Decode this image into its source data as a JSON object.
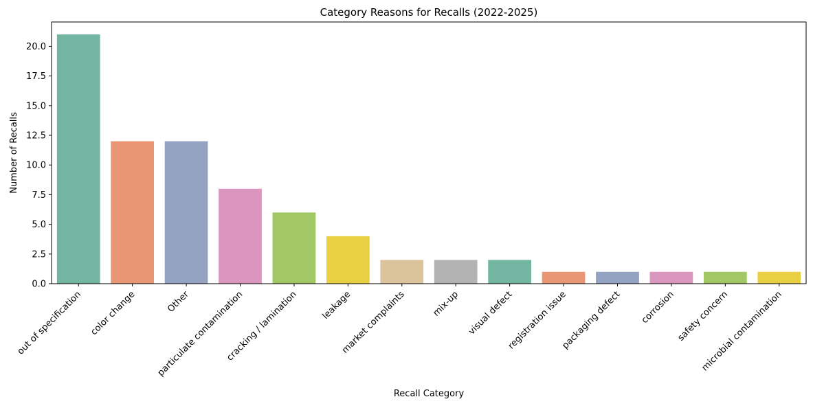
{
  "chart_data": {
    "type": "bar",
    "title": "Category Reasons for Recalls (2022-2025)",
    "xlabel": "Recall Category",
    "ylabel": "Number of Recalls",
    "ylim": [
      0,
      22.05
    ],
    "yticks": [
      0.0,
      2.5,
      5.0,
      7.5,
      10.0,
      12.5,
      15.0,
      17.5,
      20.0
    ],
    "ytick_labels": [
      "0.0",
      "2.5",
      "5.0",
      "7.5",
      "10.0",
      "12.5",
      "15.0",
      "17.5",
      "20.0"
    ],
    "grid": false,
    "categories": [
      "out of specification",
      "color change",
      "Other",
      "particulate contamination",
      "cracking / lamination",
      "leakage",
      "market complaints",
      "mix-up",
      "visual defect",
      "registration issue",
      "packaging defect",
      "corrosion",
      "safety concern",
      "microbial contamination"
    ],
    "values": [
      21,
      12,
      12,
      8,
      6,
      4,
      2,
      2,
      2,
      1,
      1,
      1,
      1,
      1
    ],
    "colors": [
      "#72b6a1",
      "#e99675",
      "#95a3c3",
      "#db96c0",
      "#a2c865",
      "#e9d043",
      "#dbc39b",
      "#b3b3b3",
      "#72b6a1",
      "#e99675",
      "#95a3c3",
      "#db96c0",
      "#a2c865",
      "#e9d043"
    ]
  }
}
